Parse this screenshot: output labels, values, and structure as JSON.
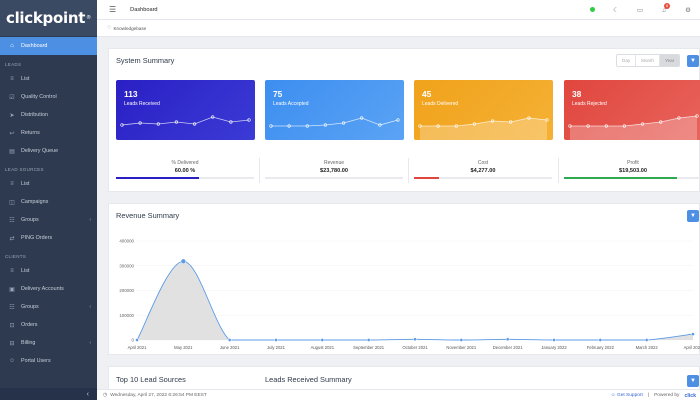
{
  "app": {
    "logo": "clickpoint",
    "logo_mark": "®"
  },
  "sidebar": {
    "dashboard": "Dashboard",
    "sections": {
      "leads": "LEADS",
      "lead_sources": "LEAD SOURCES",
      "clients": "CLIENTS"
    },
    "leads_items": [
      "List",
      "Quality Control",
      "Distribution",
      "Returns",
      "Delivery Queue"
    ],
    "lead_source_items": [
      "List",
      "Campaigns",
      "Groups",
      "PING Orders"
    ],
    "client_items": [
      "List",
      "Delivery Accounts",
      "Groups",
      "Orders",
      "Billing",
      "Portal Users"
    ],
    "collapse_icon": "chevron-left-icon"
  },
  "topbar": {
    "title": "Dashboard",
    "notification_count": "8"
  },
  "breadcrumb": {
    "label": "Knowledgebase"
  },
  "system_summary": {
    "title": "System Summary",
    "periods": [
      "Day",
      "Month",
      "Year"
    ],
    "selected_period": "Year",
    "cards": [
      {
        "value": "113",
        "label": "Leads Received",
        "color": "#2a1fc4",
        "color2": "#3b3bd6",
        "trend": [
          0.55,
          0.45,
          0.5,
          0.4,
          0.5,
          0.15,
          0.4,
          0.3
        ]
      },
      {
        "value": "75",
        "label": "Leads Accepted",
        "color": "#3c8ef0",
        "color2": "#5ba3f5",
        "trend": [
          0.6,
          0.6,
          0.6,
          0.55,
          0.45,
          0.2,
          0.55,
          0.3
        ]
      },
      {
        "value": "45",
        "label": "Leads Delivered",
        "color": "#f0a21b",
        "color2": "#f5b135",
        "trend": [
          0.6,
          0.6,
          0.6,
          0.5,
          0.35,
          0.4,
          0.2,
          0.3
        ]
      },
      {
        "value": "38",
        "label": "Leads Rejected",
        "color": "#e0463e",
        "color2": "#e8645c",
        "trend": [
          0.6,
          0.6,
          0.6,
          0.6,
          0.5,
          0.4,
          0.2,
          0.1
        ]
      }
    ],
    "metrics": [
      {
        "label": "% Delivered",
        "value": "60.00 %",
        "fill": 0.6,
        "color": "#2a1fc4"
      },
      {
        "label": "Revenue",
        "value": "$23,780.00",
        "fill": 0,
        "color": "#3c8ef0"
      },
      {
        "label": "Cost",
        "value": "$4,277.00",
        "fill": 0.18,
        "color": "#e0463e"
      },
      {
        "label": "Profit",
        "value": "$19,503.00",
        "fill": 0.82,
        "color": "#2fa84f"
      }
    ]
  },
  "revenue_summary": {
    "title": "Revenue Summary",
    "chart_data": {
      "type": "area",
      "categories": [
        "April 2021",
        "May 2021",
        "June 2021",
        "July 2021",
        "August 2021",
        "September 2021",
        "October 2021",
        "November 2021",
        "December 2021",
        "January 2022",
        "February 2022",
        "March 2022",
        "April 2022"
      ],
      "values": [
        0,
        318000,
        0,
        0,
        0,
        0,
        3000,
        0,
        3000,
        0,
        0,
        0,
        23780
      ],
      "yticks": [
        "400000",
        "300000",
        "200000",
        "100000",
        "0"
      ],
      "ylim": [
        0,
        400000
      ],
      "line_color": "#5b9be6",
      "fill_color": "#d9d9d9"
    }
  },
  "bottom_panels": {
    "top_sources_title": "Top 10 Lead Sources",
    "leads_received_title": "Leads Received Summary"
  },
  "status_bar": {
    "datetime": "Wednesday, April 27, 2022 6:26:54 PM EEST",
    "support": "Get Support",
    "powered_by": "Powered by",
    "brand": "click"
  }
}
